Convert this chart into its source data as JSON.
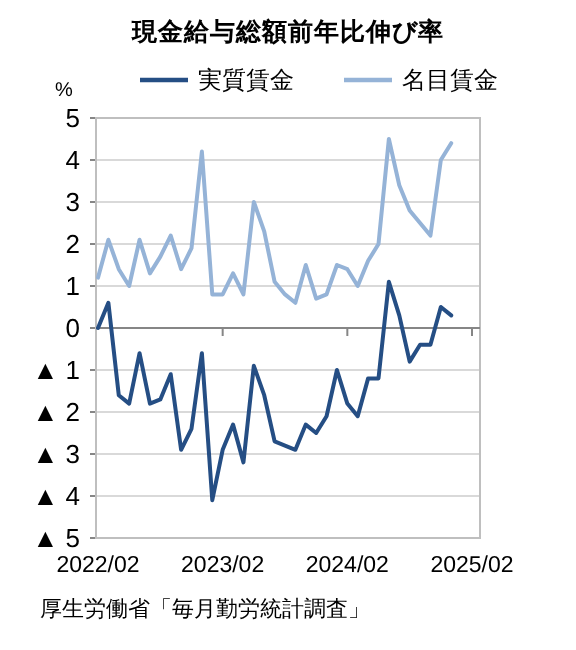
{
  "chart_data": {
    "type": "line",
    "title": "現金給与総額前年比伸び率",
    "ylabel": "%",
    "categories": [
      "2022/02",
      null,
      null,
      null,
      null,
      null,
      null,
      null,
      null,
      null,
      null,
      null,
      "2023/02",
      null,
      null,
      null,
      null,
      null,
      null,
      null,
      null,
      null,
      null,
      null,
      "2024/02",
      null,
      null,
      null,
      null,
      null,
      null,
      null,
      null,
      null,
      null,
      null,
      "2025/02"
    ],
    "series": [
      {
        "name": "実質賃金",
        "color": "#254e84",
        "values": [
          0.0,
          0.6,
          -1.6,
          -1.8,
          -0.6,
          -1.8,
          -1.7,
          -1.1,
          -2.9,
          -2.4,
          -0.6,
          -4.1,
          -2.9,
          -2.3,
          -3.2,
          -0.9,
          -1.6,
          -2.7,
          -2.8,
          -2.9,
          -2.3,
          -2.5,
          -2.1,
          -1.0,
          -1.8,
          -2.1,
          -1.2,
          -1.2,
          1.1,
          0.3,
          -0.8,
          -0.4,
          -0.4,
          0.5,
          0.3,
          null,
          null
        ]
      },
      {
        "name": "名目賃金",
        "color": "#95b3d7",
        "values": [
          1.2,
          2.1,
          1.4,
          1.0,
          2.1,
          1.3,
          1.7,
          2.2,
          1.4,
          1.9,
          4.2,
          0.8,
          0.8,
          1.3,
          0.8,
          3.0,
          2.3,
          1.1,
          0.8,
          0.6,
          1.5,
          0.7,
          0.8,
          1.5,
          1.4,
          1.0,
          1.6,
          2.0,
          4.5,
          3.4,
          2.8,
          2.5,
          2.2,
          4.0,
          4.4,
          null,
          null
        ]
      }
    ],
    "ylim": [
      -5,
      5
    ],
    "yticks": [
      {
        "value": -5,
        "label": "▲ 5"
      },
      {
        "value": -4,
        "label": "▲ 4"
      },
      {
        "value": -3,
        "label": "▲ 3"
      },
      {
        "value": -2,
        "label": "▲ 2"
      },
      {
        "value": -1,
        "label": "▲ 1"
      },
      0,
      1,
      2,
      3,
      4,
      5
    ],
    "grid": "y",
    "legend": "top",
    "line_style": "solid",
    "annotations": [
      "厚生労働省「毎月勤労統計調査」"
    ]
  }
}
